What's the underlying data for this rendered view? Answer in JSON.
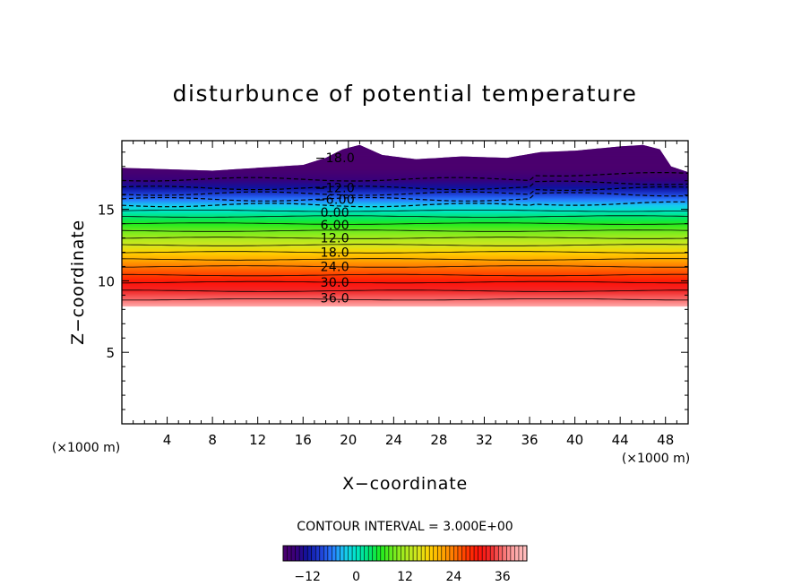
{
  "chart_data": {
    "type": "heatmap",
    "title": "disturbunce of potential temperature",
    "xlabel": "X−coordinate",
    "ylabel": "Z−coordinate",
    "x_unit_left": "(×1000 m)",
    "x_unit_right": "(×1000 m)",
    "xlim": [
      0,
      50
    ],
    "ylim": [
      0,
      19.8
    ],
    "x_ticks": [
      4,
      8,
      12,
      16,
      20,
      24,
      28,
      32,
      36,
      40,
      44,
      48
    ],
    "y_ticks": [
      5,
      10,
      15
    ],
    "x_tick_labels": [
      "4",
      "8",
      "12",
      "16",
      "20",
      "24",
      "28",
      "32",
      "36",
      "40",
      "44",
      "48"
    ],
    "y_tick_labels": [
      "5",
      "10",
      "15"
    ],
    "contour_interval_text": "CONTOUR INTERVAL = 3.000E+00",
    "contour_interval": 3,
    "colorbar": {
      "min": -18,
      "max": 42,
      "ticks": [
        -12,
        0,
        12,
        24,
        36
      ],
      "tick_labels": [
        "−12",
        "0",
        "12",
        "24",
        "36"
      ]
    },
    "field_extent": {
      "z_bottom": 8.2,
      "top_profile": [
        {
          "x": 0,
          "z": 17.9
        },
        {
          "x": 4,
          "z": 17.8
        },
        {
          "x": 8,
          "z": 17.7
        },
        {
          "x": 12,
          "z": 17.9
        },
        {
          "x": 16,
          "z": 18.1
        },
        {
          "x": 18,
          "z": 18.6
        },
        {
          "x": 19.5,
          "z": 19.2
        },
        {
          "x": 21,
          "z": 19.5
        },
        {
          "x": 23,
          "z": 18.8
        },
        {
          "x": 26,
          "z": 18.5
        },
        {
          "x": 30,
          "z": 18.7
        },
        {
          "x": 34,
          "z": 18.6
        },
        {
          "x": 37,
          "z": 19.0
        },
        {
          "x": 40,
          "z": 19.1
        },
        {
          "x": 44,
          "z": 19.4
        },
        {
          "x": 46,
          "z": 19.5
        },
        {
          "x": 47.5,
          "z": 19.2
        },
        {
          "x": 48.5,
          "z": 18.0
        },
        {
          "x": 50,
          "z": 17.6
        }
      ]
    },
    "contours": [
      {
        "value": 36,
        "z": 8.7
      },
      {
        "value": 33,
        "z": 9.3
      },
      {
        "value": 30,
        "z": 9.9
      },
      {
        "value": 27,
        "z": 10.4
      },
      {
        "value": 24,
        "z": 11.0
      },
      {
        "value": 21,
        "z": 11.5
      },
      {
        "value": 18,
        "z": 12.0
      },
      {
        "value": 15,
        "z": 12.5
      },
      {
        "value": 12,
        "z": 13.0
      },
      {
        "value": 9,
        "z": 13.5
      },
      {
        "value": 6,
        "z": 14.0
      },
      {
        "value": 3,
        "z": 14.5
      },
      {
        "value": 0,
        "z": 14.9
      },
      {
        "value": -3,
        "z": 15.3
      },
      {
        "value": -6,
        "z": 15.7
      },
      {
        "value": -9,
        "z": 16.1
      },
      {
        "value": -12,
        "z": 16.5
      },
      {
        "value": -15,
        "z": 17.1
      }
    ],
    "contour_labels": [
      {
        "text": "36.0",
        "x": 18.5,
        "z": 8.8
      },
      {
        "text": "30.0",
        "x": 18.5,
        "z": 9.9
      },
      {
        "text": "24.0",
        "x": 18.5,
        "z": 11.0
      },
      {
        "text": "18.0",
        "x": 18.5,
        "z": 12.0
      },
      {
        "text": "12.0",
        "x": 18.5,
        "z": 13.0
      },
      {
        "text": "6.00",
        "x": 18.5,
        "z": 13.9
      },
      {
        "text": "0.00",
        "x": 18.5,
        "z": 14.8
      },
      {
        "text": "−6.00",
        "x": 18.5,
        "z": 15.7
      },
      {
        "text": "−12.0",
        "x": 18.5,
        "z": 16.5
      },
      {
        "text": "−18.0",
        "x": 18.5,
        "z": 18.6
      }
    ]
  }
}
